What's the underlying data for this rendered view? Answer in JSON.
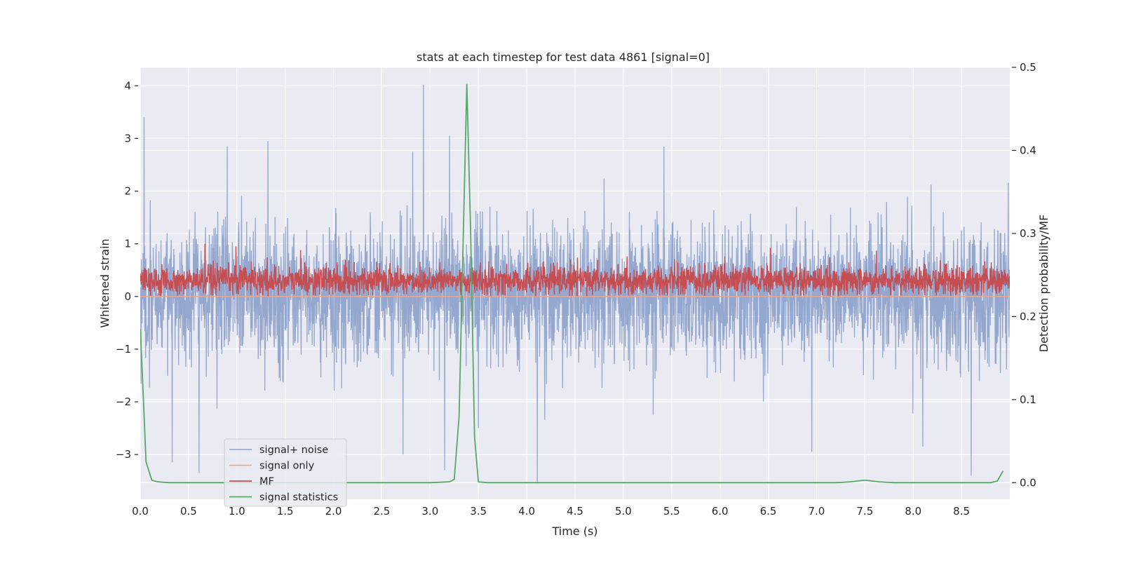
{
  "chart_data": {
    "type": "line",
    "title": "stats at each timestep for test data 4861 [signal=0]",
    "xlabel": "Time (s)",
    "ylabel": "Whitened strain",
    "y2label": "Detection probability/MF",
    "xlim": [
      0.0,
      9.0
    ],
    "ylim": [
      -3.85,
      4.35
    ],
    "y2lim": [
      -0.02,
      0.5
    ],
    "xticks": [
      "0.0",
      "0.5",
      "1.0",
      "1.5",
      "2.0",
      "2.5",
      "3.0",
      "3.5",
      "4.0",
      "4.5",
      "5.0",
      "5.5",
      "6.0",
      "6.5",
      "7.0",
      "7.5",
      "8.0",
      "8.5"
    ],
    "yticks": [
      "4",
      "3",
      "2",
      "1",
      "0",
      "−1",
      "−2",
      "−3"
    ],
    "y2ticks": [
      "0.5",
      "0.4",
      "0.3",
      "0.2",
      "0.1",
      "0.0"
    ],
    "grid": true,
    "legend_position": "lower-left",
    "colors": {
      "background": "#eaeaf2",
      "grid": "#ffffff",
      "noise": "#8fa3cc",
      "signal_only": "#eaa68b",
      "mf": "#c44e52",
      "stats": "#55a868"
    },
    "series": [
      {
        "name": "signal+ noise",
        "axis": "left",
        "color": "#8fa3cc",
        "note_on_render": "dense noise trace",
        "peaks_high": [
          [
            0.04,
            3.4
          ],
          [
            2.93,
            4.02
          ],
          [
            3.2,
            3.05
          ],
          [
            1.32,
            2.95
          ],
          [
            5.42,
            2.85
          ],
          [
            0.9,
            2.85
          ],
          [
            2.82,
            2.75
          ]
        ],
        "peaks_low": [
          [
            4.11,
            -3.55
          ],
          [
            0.61,
            -3.35
          ],
          [
            3.15,
            -3.3
          ],
          [
            8.6,
            -3.4
          ],
          [
            0.33,
            -3.15
          ],
          [
            2.72,
            -3.0
          ],
          [
            6.95,
            -2.95
          ],
          [
            8.1,
            -2.85
          ],
          [
            3.5,
            -2.5
          ]
        ]
      },
      {
        "name": "signal only",
        "axis": "left",
        "color": "#eaa68b",
        "x": [
          0.0,
          9.0
        ],
        "values": [
          0.0,
          0.0
        ]
      },
      {
        "name": "MF",
        "axis": "left",
        "color": "#c44e52",
        "note_on_render": "dense matched-filter trace",
        "peaks_high": [
          [
            0.67,
            1.0
          ],
          [
            0.99,
            0.95
          ],
          [
            6.52,
            0.92
          ],
          [
            1.66,
            0.88
          ],
          [
            7.62,
            0.87
          ]
        ]
      },
      {
        "name": "signal statistics",
        "axis": "right",
        "color": "#55a868",
        "x": [
          0.0,
          0.02,
          0.06,
          0.12,
          0.18,
          0.3,
          0.5,
          1.0,
          2.0,
          3.0,
          3.2,
          3.25,
          3.3,
          3.34,
          3.38,
          3.42,
          3.46,
          3.5,
          3.6,
          4.0,
          5.0,
          6.0,
          7.0,
          7.2,
          7.35,
          7.5,
          7.65,
          7.8,
          8.0,
          8.5,
          8.8,
          8.87,
          8.93
        ],
        "values": [
          0.185,
          0.135,
          0.025,
          0.003,
          0.001,
          0.0,
          0.0,
          0.0,
          0.0,
          0.0,
          0.001,
          0.004,
          0.08,
          0.28,
          0.48,
          0.3,
          0.055,
          0.001,
          0.0,
          0.0,
          0.0,
          0.0,
          0.0,
          0.0,
          0.001,
          0.003,
          0.001,
          0.0,
          0.0,
          0.0,
          0.0,
          0.002,
          0.014
        ]
      }
    ]
  }
}
